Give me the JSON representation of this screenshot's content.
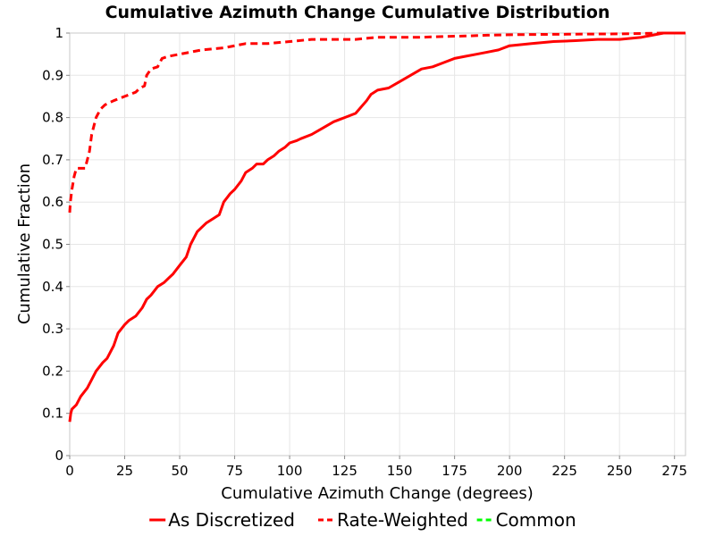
{
  "chart_data": {
    "type": "line",
    "title": "Cumulative Azimuth Change Cumulative Distribution",
    "xlabel": "Cumulative Azimuth Change (degrees)",
    "ylabel": "Cumulative Fraction",
    "xlim": [
      0,
      280
    ],
    "ylim": [
      0,
      1
    ],
    "xticks": [
      "0",
      "25",
      "50",
      "75",
      "100",
      "125",
      "150",
      "175",
      "200",
      "225",
      "250",
      "275"
    ],
    "yticks": [
      "0",
      "0.1",
      "0.2",
      "0.3",
      "0.4",
      "0.5",
      "0.6",
      "0.7",
      "0.8",
      "0.9",
      "1"
    ],
    "grid": true,
    "legend_position": "bottom",
    "series": [
      {
        "name": "As Discretized",
        "color": "#ff0000",
        "dash": "solid",
        "x": [
          0,
          0.5,
          1,
          3,
          5,
          8,
          10,
          12,
          15,
          17,
          20,
          22,
          25,
          27,
          30,
          33,
          35,
          37,
          40,
          43,
          45,
          47,
          50,
          53,
          55,
          58,
          60,
          62,
          65,
          68,
          70,
          73,
          75,
          78,
          80,
          83,
          85,
          88,
          90,
          93,
          95,
          98,
          100,
          103,
          105,
          110,
          115,
          120,
          125,
          130,
          135,
          137,
          140,
          145,
          150,
          155,
          160,
          165,
          170,
          175,
          180,
          185,
          190,
          195,
          200,
          210,
          220,
          230,
          240,
          250,
          260,
          265,
          270,
          280
        ],
        "y": [
          0.08,
          0.1,
          0.11,
          0.12,
          0.14,
          0.16,
          0.18,
          0.2,
          0.22,
          0.23,
          0.26,
          0.29,
          0.31,
          0.32,
          0.33,
          0.35,
          0.37,
          0.38,
          0.4,
          0.41,
          0.42,
          0.43,
          0.45,
          0.47,
          0.5,
          0.53,
          0.54,
          0.55,
          0.56,
          0.57,
          0.6,
          0.62,
          0.63,
          0.65,
          0.67,
          0.68,
          0.69,
          0.69,
          0.7,
          0.71,
          0.72,
          0.73,
          0.74,
          0.745,
          0.75,
          0.76,
          0.775,
          0.79,
          0.8,
          0.81,
          0.84,
          0.855,
          0.865,
          0.87,
          0.885,
          0.9,
          0.915,
          0.92,
          0.93,
          0.94,
          0.945,
          0.95,
          0.955,
          0.96,
          0.97,
          0.975,
          0.98,
          0.982,
          0.985,
          0.985,
          0.99,
          0.995,
          1.0,
          1.0
        ]
      },
      {
        "name": "Rate-Weighted",
        "color": "#ff0000",
        "dash": "dashed",
        "x": [
          0,
          0.3,
          1,
          2,
          3,
          5,
          7,
          8,
          9,
          10,
          12,
          14,
          16,
          18,
          20,
          25,
          30,
          32,
          34,
          35,
          37,
          40,
          42,
          45,
          50,
          55,
          60,
          70,
          75,
          80,
          85,
          90,
          100,
          110,
          120,
          130,
          140,
          150,
          160,
          170,
          180,
          190,
          200,
          220,
          250,
          270,
          280
        ],
        "y": [
          0.575,
          0.6,
          0.63,
          0.66,
          0.68,
          0.68,
          0.68,
          0.7,
          0.72,
          0.76,
          0.8,
          0.82,
          0.83,
          0.835,
          0.84,
          0.85,
          0.86,
          0.87,
          0.875,
          0.9,
          0.915,
          0.92,
          0.94,
          0.945,
          0.95,
          0.955,
          0.96,
          0.965,
          0.97,
          0.975,
          0.975,
          0.975,
          0.98,
          0.985,
          0.985,
          0.985,
          0.99,
          0.99,
          0.99,
          0.992,
          0.993,
          0.995,
          0.996,
          0.997,
          0.998,
          1.0,
          1.0
        ]
      },
      {
        "name": "Common",
        "color": "#00ff00",
        "dash": "dashed",
        "x": [],
        "y": []
      }
    ]
  }
}
